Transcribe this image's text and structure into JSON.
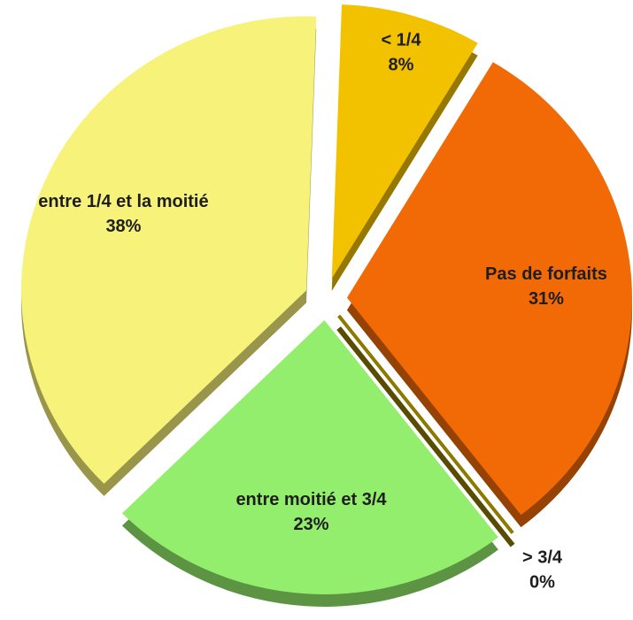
{
  "chart_data": {
    "type": "pie",
    "categories": [
      "< 1/4",
      "Pas de forfaits",
      "> 3/4",
      "entre moitié et 3/4",
      "entre 1/4 et la moitié"
    ],
    "values": [
      8,
      31,
      0,
      23,
      38
    ],
    "value_labels": [
      "8%",
      "31%",
      "0%",
      "23%",
      "38%"
    ],
    "colors": [
      "#f2c200",
      "#f26a06",
      "#8c7a00",
      "#94ee6e",
      "#f6f27a"
    ]
  }
}
